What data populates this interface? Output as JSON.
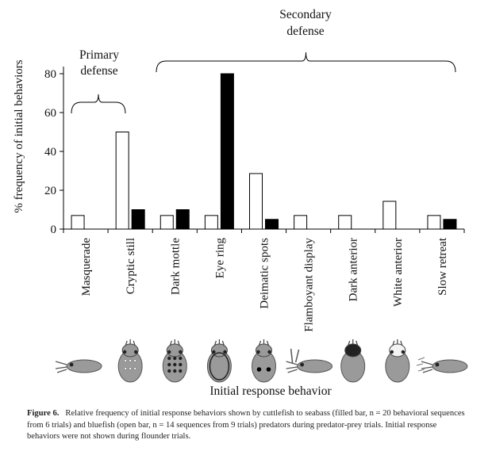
{
  "chart_data": {
    "type": "bar",
    "title": "",
    "xlabel": "Initial response behavior",
    "ylabel": "% frequency of initial behaviors",
    "ylim": [
      0,
      80
    ],
    "yticks": [
      0,
      20,
      40,
      60,
      80
    ],
    "categories": [
      "Masquerade",
      "Cryptic still",
      "Dark mottle",
      "Eye ring",
      "Deimatic spots",
      "Flamboyant display",
      "Dark anterior",
      "White anterior",
      "Slow retreat"
    ],
    "series": [
      {
        "name": "bluefish (open bar)",
        "fill": "#ffffff",
        "values": [
          7,
          50,
          7,
          7,
          28.6,
          7,
          7,
          14.3,
          7
        ]
      },
      {
        "name": "seabass (filled bar)",
        "fill": "#000000",
        "values": [
          0,
          10,
          10,
          80,
          5,
          0,
          0,
          0,
          5
        ]
      }
    ],
    "groups": [
      {
        "label_line1": "Primary",
        "label_line2": "defense",
        "from_index": 0,
        "to_index": 1
      },
      {
        "label_line1": "Secondary",
        "label_line2": "defense",
        "from_index": 2,
        "to_index": 8
      }
    ],
    "illustrations": [
      "masquerade-cuttlefish",
      "cryptic-still-cuttlefish",
      "dark-mottle-cuttlefish",
      "eye-ring-cuttlefish",
      "deimatic-spots-cuttlefish",
      "flamboyant-display-cuttlefish",
      "dark-anterior-cuttlefish",
      "white-anterior-cuttlefish",
      "slow-retreat-cuttlefish"
    ]
  },
  "caption": {
    "label": "Figure 6.",
    "text": "Relative frequency of initial response behaviors shown by cuttlefish to seabass (filled bar, n = 20 behavioral sequences from 6 trials) and bluefish (open bar, n = 14 sequences from 9 trials) predators during predator-prey trials. Initial response behaviors were not shown during flounder trials."
  },
  "colors": {
    "axis": "#000000",
    "open_bar": "#ffffff",
    "filled_bar": "#000000",
    "illustration": "#9a9a9a"
  }
}
